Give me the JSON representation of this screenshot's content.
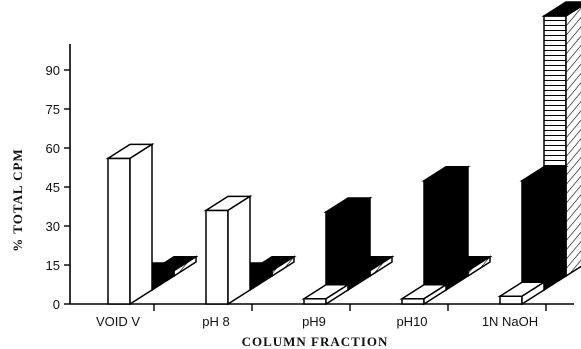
{
  "chart_data": {
    "type": "bar",
    "title": "",
    "xlabel": "COLUMN FRACTION",
    "ylabel": "% TOTAL CPM",
    "ylim": [
      0,
      100
    ],
    "yticks": [
      0,
      15,
      30,
      45,
      60,
      75,
      90
    ],
    "categories": [
      "VOID V",
      "pH 8",
      "pH9",
      "pH10",
      "1N NaOH"
    ],
    "series": [
      {
        "values": [
          56,
          36,
          2,
          2,
          3
        ]
      },
      {
        "values": [
          5,
          5,
          30,
          42,
          42
        ]
      },
      {
        "values": [
          2,
          2,
          2,
          2,
          100
        ]
      }
    ],
    "styles": [
      "white",
      "black",
      "hatched"
    ]
  }
}
